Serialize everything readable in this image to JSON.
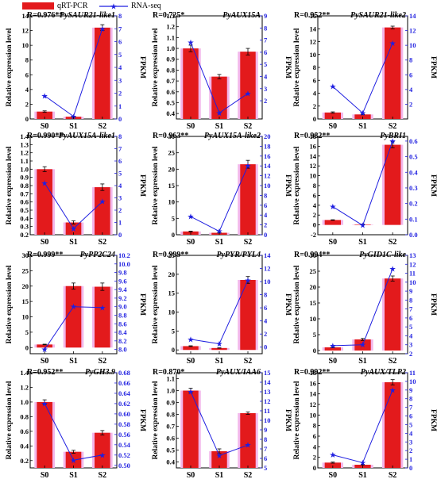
{
  "legend": {
    "qrt_label": "qRT-PCR",
    "rna_label": "RNA-seq",
    "bar_color": "#e31a1c",
    "line_color": "#1f1fe0",
    "error_shadow_color": "#f2b6ea"
  },
  "axis_labels": {
    "left": "Relative expression level",
    "right": "FPKM"
  },
  "chart_data": [
    {
      "type": "bar",
      "gene": "PySAUR21-like1",
      "r": "R=0.976**",
      "categories": [
        "S0",
        "S1",
        "S2"
      ],
      "series": [
        {
          "name": "qRT-PCR",
          "values": [
            1.0,
            0.3,
            12.4
          ],
          "errors": [
            0.1,
            0.05,
            0.4
          ]
        },
        {
          "name": "RNA-seq",
          "values": [
            1.8,
            0.2,
            7.0
          ]
        }
      ],
      "ylim_left": [
        0,
        14
      ],
      "yticks_left": [
        0,
        2,
        4,
        6,
        8,
        10,
        12,
        14
      ],
      "ylim_right": [
        0,
        8
      ],
      "yticks_right": [
        0,
        1,
        2,
        3,
        4,
        5,
        6,
        7,
        8
      ]
    },
    {
      "type": "bar",
      "gene": "PyAUX15A",
      "r": "R=0.725*",
      "categories": [
        "S0",
        "S1",
        "S2"
      ],
      "series": [
        {
          "name": "qRT-PCR",
          "values": [
            1.0,
            0.74,
            0.97
          ],
          "errors": [
            0.03,
            0.02,
            0.03
          ]
        },
        {
          "name": "RNA-seq",
          "values": [
            6.8,
            1.0,
            2.6
          ]
        }
      ],
      "ylim_left": [
        0.35,
        1.3
      ],
      "yticks_left": [
        0.4,
        0.5,
        0.6,
        0.7,
        0.8,
        0.9,
        1.0,
        1.1,
        1.2,
        1.3
      ],
      "ylim_right": [
        0.5,
        9
      ],
      "yticks_right": [
        2,
        3,
        4,
        5,
        6,
        7,
        8,
        9
      ]
    },
    {
      "type": "bar",
      "gene": "PySAUR21-like2",
      "r": "R=0.952**",
      "categories": [
        "S0",
        "S1",
        "S2"
      ],
      "series": [
        {
          "name": "qRT-PCR",
          "values": [
            1.0,
            0.7,
            14.2
          ],
          "errors": [
            0.1,
            0.05,
            0.2
          ]
        },
        {
          "name": "RNA-seq",
          "values": [
            4.4,
            0.8,
            10.3
          ]
        }
      ],
      "ylim_left": [
        0,
        16
      ],
      "yticks_left": [
        0,
        2,
        4,
        6,
        8,
        10,
        12,
        14,
        16
      ],
      "ylim_right": [
        0,
        14
      ],
      "yticks_right": [
        2,
        4,
        6,
        8,
        10,
        12,
        14
      ]
    },
    {
      "type": "bar",
      "gene": "PyAUX15A-like1",
      "r": "R=0.990**",
      "categories": [
        "S0",
        "S1",
        "S2"
      ],
      "series": [
        {
          "name": "qRT-PCR",
          "values": [
            1.0,
            0.35,
            0.78
          ],
          "errors": [
            0.03,
            0.02,
            0.04
          ]
        },
        {
          "name": "RNA-seq",
          "values": [
            4.2,
            0.5,
            2.7
          ]
        }
      ],
      "ylim_left": [
        0.2,
        1.4
      ],
      "yticks_left": [
        0.2,
        0.3,
        0.4,
        0.5,
        0.6,
        0.7,
        0.8,
        0.9,
        1.0,
        1.1,
        1.2,
        1.3,
        1.4
      ],
      "ylim_right": [
        0,
        8
      ],
      "yticks_right": [
        0,
        1,
        2,
        3,
        4,
        5,
        6,
        7,
        8
      ]
    },
    {
      "type": "bar",
      "gene": "PyAUX15A-like2",
      "r": "R=0.963**",
      "categories": [
        "S0",
        "S1",
        "S2"
      ],
      "series": [
        {
          "name": "qRT-PCR",
          "values": [
            1.0,
            0.6,
            21.5
          ],
          "errors": [
            0.1,
            0.05,
            1.2
          ]
        },
        {
          "name": "RNA-seq",
          "values": [
            3.7,
            0.7,
            14.0
          ]
        }
      ],
      "ylim_left": [
        0,
        30
      ],
      "yticks_left": [
        0,
        5,
        10,
        15,
        20,
        25,
        30
      ],
      "ylim_right": [
        0,
        20
      ],
      "yticks_right": [
        0,
        2,
        4,
        6,
        8,
        10,
        12,
        14,
        16,
        18,
        20
      ]
    },
    {
      "type": "bar",
      "gene": "PyBRI1",
      "r": "R=0.982**",
      "categories": [
        "S0",
        "S1",
        "S2"
      ],
      "series": [
        {
          "name": "qRT-PCR",
          "values": [
            1.0,
            0.1,
            16.3
          ],
          "errors": [
            0.05,
            0.05,
            0.6
          ]
        },
        {
          "name": "RNA-seq",
          "values": [
            0.18,
            0.06,
            0.6
          ]
        }
      ],
      "ylim_left": [
        -2,
        18
      ],
      "yticks_left": [
        -2,
        0,
        2,
        4,
        6,
        8,
        10,
        12,
        14,
        16,
        18
      ],
      "ylim_right": [
        0,
        0.63
      ],
      "yticks_right": [
        0,
        0.1,
        0.2,
        0.3,
        0.4,
        0.5,
        0.6
      ]
    },
    {
      "type": "bar",
      "gene": "PyPP2C24",
      "r": "R=0.999**",
      "categories": [
        "S0",
        "S1",
        "S2"
      ],
      "series": [
        {
          "name": "qRT-PCR",
          "values": [
            1.0,
            20.0,
            19.8
          ],
          "errors": [
            0.1,
            1.0,
            1.2
          ]
        },
        {
          "name": "RNA-seq",
          "values": [
            8.0,
            9.0,
            8.98
          ]
        }
      ],
      "ylim_left": [
        -2,
        30
      ],
      "yticks_left": [
        0,
        5,
        10,
        15,
        20,
        25,
        30
      ],
      "ylim_right": [
        7.9,
        10.2
      ],
      "yticks_right": [
        7.8,
        8.0,
        8.2,
        8.4,
        8.6,
        8.8,
        9.0,
        9.2,
        9.4,
        9.6,
        9.8,
        10.0,
        10.2
      ]
    },
    {
      "type": "bar",
      "gene": "PyPYR/PYL4",
      "r": "R=0.999**",
      "categories": [
        "S0",
        "S1",
        "S2"
      ],
      "series": [
        {
          "name": "qRT-PCR",
          "values": [
            1.0,
            0.5,
            18.5
          ],
          "errors": [
            0.1,
            0.05,
            0.9
          ]
        },
        {
          "name": "RNA-seq",
          "values": [
            1.2,
            0.5,
            10.2
          ]
        }
      ],
      "ylim_left": [
        -1,
        25
      ],
      "yticks_left": [
        0,
        5,
        10,
        15,
        20,
        25
      ],
      "ylim_right": [
        -1,
        14
      ],
      "yticks_right": [
        0,
        2,
        4,
        6,
        8,
        10,
        12,
        14
      ]
    },
    {
      "type": "bar",
      "gene": "PyGID1C-like",
      "r": "R=0.994**",
      "categories": [
        "S0",
        "S1",
        "S2"
      ],
      "series": [
        {
          "name": "qRT-PCR",
          "values": [
            1.0,
            3.5,
            22.7
          ],
          "errors": [
            0.1,
            0.3,
            0.8
          ]
        },
        {
          "name": "RNA-seq",
          "values": [
            2.9,
            3.0,
            11.5
          ]
        }
      ],
      "ylim_left": [
        -1,
        30
      ],
      "yticks_left": [
        0,
        5,
        10,
        15,
        20,
        25,
        30
      ],
      "ylim_right": [
        2,
        13
      ],
      "yticks_right": [
        2,
        3,
        4,
        5,
        6,
        7,
        8,
        9,
        10,
        11,
        12,
        13
      ]
    },
    {
      "type": "bar",
      "gene": "PyGH3.9",
      "r": "R=0.952**",
      "categories": [
        "S0",
        "S1",
        "S2"
      ],
      "series": [
        {
          "name": "qRT-PCR",
          "values": [
            1.0,
            0.32,
            0.58
          ],
          "errors": [
            0.03,
            0.02,
            0.03
          ]
        },
        {
          "name": "RNA-seq",
          "values": [
            0.62,
            0.51,
            0.52
          ]
        }
      ],
      "ylim_left": [
        0.1,
        1.4
      ],
      "yticks_left": [
        0.2,
        0.4,
        0.6,
        0.8,
        1.0,
        1.2,
        1.4
      ],
      "ylim_right": [
        0.495,
        0.68
      ],
      "yticks_right": [
        0.5,
        0.52,
        0.54,
        0.56,
        0.58,
        0.6,
        0.62,
        0.64,
        0.66,
        0.68
      ]
    },
    {
      "type": "bar",
      "gene": "PyAUX/IAA6",
      "r": "R=0.870*",
      "categories": [
        "S0",
        "S1",
        "S2"
      ],
      "series": [
        {
          "name": "qRT-PCR",
          "values": [
            1.0,
            0.49,
            0.81
          ],
          "errors": [
            0.02,
            0.02,
            0.01
          ]
        },
        {
          "name": "RNA-seq",
          "values": [
            13.0,
            6.3,
            7.4
          ]
        }
      ],
      "ylim_left": [
        0.35,
        1.15
      ],
      "yticks_left": [
        0.4,
        0.5,
        0.6,
        0.7,
        0.8,
        0.9,
        1.0,
        1.1
      ],
      "ylim_right": [
        5,
        15
      ],
      "yticks_right": [
        5,
        6,
        7,
        8,
        9,
        10,
        11,
        12,
        13,
        14,
        15
      ]
    },
    {
      "type": "bar",
      "gene": "PyAUX/TLP2",
      "r": "R=0.992**",
      "categories": [
        "S0",
        "S1",
        "S2"
      ],
      "series": [
        {
          "name": "qRT-PCR",
          "values": [
            1.0,
            0.6,
            16.2
          ],
          "errors": [
            0.1,
            0.05,
            0.5
          ]
        },
        {
          "name": "RNA-seq",
          "values": [
            1.5,
            0.6,
            9.0
          ]
        }
      ],
      "ylim_left": [
        0,
        18
      ],
      "yticks_left": [
        0,
        2,
        4,
        6,
        8,
        10,
        12,
        14,
        16,
        18
      ],
      "ylim_right": [
        0,
        11
      ],
      "yticks_right": [
        0,
        1,
        2,
        3,
        4,
        5,
        6,
        7,
        8,
        9,
        10,
        11
      ]
    }
  ]
}
